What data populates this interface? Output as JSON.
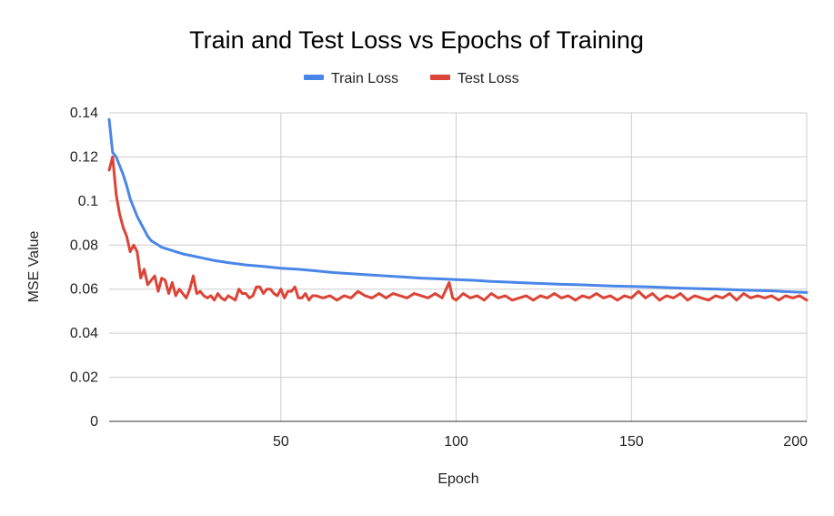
{
  "chart_data": {
    "type": "line",
    "title": "Train and Test Loss vs Epochs of Training",
    "xlabel": "Epoch",
    "ylabel": "MSE Value",
    "xlim": [
      1,
      200
    ],
    "ylim": [
      0,
      0.14
    ],
    "x_ticks": [
      50,
      100,
      150,
      200
    ],
    "x_tick_labels": [
      "50",
      "100",
      "150",
      "200"
    ],
    "y_ticks": [
      0,
      0.02,
      0.04,
      0.06,
      0.08,
      0.1,
      0.12,
      0.14
    ],
    "y_tick_labels": [
      "0",
      "0.02",
      "0.04",
      "0.06",
      "0.08",
      "0.1",
      "0.12",
      "0.14"
    ],
    "grid": true,
    "legend_position": "top",
    "series": [
      {
        "name": "Train Loss",
        "color": "#4a86e8",
        "points": [
          [
            1,
            0.137
          ],
          [
            2,
            0.122
          ],
          [
            3,
            0.12
          ],
          [
            4,
            0.116
          ],
          [
            5,
            0.112
          ],
          [
            6,
            0.107
          ],
          [
            7,
            0.101
          ],
          [
            8,
            0.097
          ],
          [
            9,
            0.093
          ],
          [
            10,
            0.09
          ],
          [
            11,
            0.087
          ],
          [
            12,
            0.084
          ],
          [
            13,
            0.082
          ],
          [
            14,
            0.081
          ],
          [
            15,
            0.08
          ],
          [
            16,
            0.079
          ],
          [
            17,
            0.0785
          ],
          [
            18,
            0.078
          ],
          [
            19,
            0.0775
          ],
          [
            20,
            0.077
          ],
          [
            22,
            0.076
          ],
          [
            25,
            0.075
          ],
          [
            28,
            0.074
          ],
          [
            31,
            0.073
          ],
          [
            35,
            0.072
          ],
          [
            40,
            0.071
          ],
          [
            45,
            0.0703
          ],
          [
            50,
            0.0695
          ],
          [
            55,
            0.069
          ],
          [
            60,
            0.0683
          ],
          [
            65,
            0.0675
          ],
          [
            70,
            0.067
          ],
          [
            75,
            0.0665
          ],
          [
            80,
            0.066
          ],
          [
            85,
            0.0655
          ],
          [
            90,
            0.065
          ],
          [
            95,
            0.0647
          ],
          [
            100,
            0.0643
          ],
          [
            105,
            0.064
          ],
          [
            110,
            0.0635
          ],
          [
            115,
            0.0632
          ],
          [
            120,
            0.0628
          ],
          [
            125,
            0.0625
          ],
          [
            130,
            0.0622
          ],
          [
            135,
            0.062
          ],
          [
            140,
            0.0617
          ],
          [
            145,
            0.0614
          ],
          [
            150,
            0.0612
          ],
          [
            155,
            0.061
          ],
          [
            160,
            0.0607
          ],
          [
            165,
            0.0604
          ],
          [
            170,
            0.0602
          ],
          [
            175,
            0.06
          ],
          [
            180,
            0.0597
          ],
          [
            185,
            0.0594
          ],
          [
            190,
            0.0592
          ],
          [
            195,
            0.0588
          ],
          [
            200,
            0.0585
          ]
        ]
      },
      {
        "name": "Test Loss",
        "color": "#db4437",
        "points": [
          [
            1,
            0.114
          ],
          [
            2,
            0.12
          ],
          [
            3,
            0.103
          ],
          [
            4,
            0.094
          ],
          [
            5,
            0.088
          ],
          [
            6,
            0.084
          ],
          [
            7,
            0.077
          ],
          [
            8,
            0.08
          ],
          [
            9,
            0.077
          ],
          [
            10,
            0.065
          ],
          [
            11,
            0.069
          ],
          [
            12,
            0.062
          ],
          [
            13,
            0.064
          ],
          [
            14,
            0.066
          ],
          [
            15,
            0.059
          ],
          [
            16,
            0.065
          ],
          [
            17,
            0.064
          ],
          [
            18,
            0.058
          ],
          [
            19,
            0.063
          ],
          [
            20,
            0.057
          ],
          [
            21,
            0.06
          ],
          [
            22,
            0.058
          ],
          [
            23,
            0.056
          ],
          [
            24,
            0.06
          ],
          [
            25,
            0.066
          ],
          [
            26,
            0.058
          ],
          [
            27,
            0.059
          ],
          [
            28,
            0.057
          ],
          [
            29,
            0.056
          ],
          [
            30,
            0.057
          ],
          [
            31,
            0.055
          ],
          [
            32,
            0.058
          ],
          [
            33,
            0.056
          ],
          [
            34,
            0.055
          ],
          [
            35,
            0.057
          ],
          [
            36,
            0.056
          ],
          [
            37,
            0.055
          ],
          [
            38,
            0.06
          ],
          [
            39,
            0.058
          ],
          [
            40,
            0.058
          ],
          [
            41,
            0.056
          ],
          [
            42,
            0.057
          ],
          [
            43,
            0.061
          ],
          [
            44,
            0.061
          ],
          [
            45,
            0.058
          ],
          [
            46,
            0.06
          ],
          [
            47,
            0.06
          ],
          [
            48,
            0.058
          ],
          [
            49,
            0.057
          ],
          [
            50,
            0.06
          ],
          [
            51,
            0.056
          ],
          [
            52,
            0.059
          ],
          [
            53,
            0.059
          ],
          [
            54,
            0.061
          ],
          [
            55,
            0.056
          ],
          [
            56,
            0.056
          ],
          [
            57,
            0.058
          ],
          [
            58,
            0.055
          ],
          [
            59,
            0.057
          ],
          [
            60,
            0.057
          ],
          [
            62,
            0.056
          ],
          [
            64,
            0.057
          ],
          [
            66,
            0.055
          ],
          [
            68,
            0.057
          ],
          [
            70,
            0.056
          ],
          [
            72,
            0.059
          ],
          [
            74,
            0.057
          ],
          [
            76,
            0.056
          ],
          [
            78,
            0.058
          ],
          [
            80,
            0.056
          ],
          [
            82,
            0.058
          ],
          [
            84,
            0.057
          ],
          [
            86,
            0.056
          ],
          [
            88,
            0.058
          ],
          [
            90,
            0.057
          ],
          [
            92,
            0.056
          ],
          [
            94,
            0.058
          ],
          [
            96,
            0.056
          ],
          [
            98,
            0.063
          ],
          [
            99,
            0.056
          ],
          [
            100,
            0.055
          ],
          [
            102,
            0.058
          ],
          [
            104,
            0.056
          ],
          [
            106,
            0.057
          ],
          [
            108,
            0.055
          ],
          [
            110,
            0.058
          ],
          [
            112,
            0.056
          ],
          [
            114,
            0.057
          ],
          [
            116,
            0.055
          ],
          [
            118,
            0.056
          ],
          [
            120,
            0.057
          ],
          [
            122,
            0.055
          ],
          [
            124,
            0.057
          ],
          [
            126,
            0.056
          ],
          [
            128,
            0.058
          ],
          [
            130,
            0.056
          ],
          [
            132,
            0.057
          ],
          [
            134,
            0.055
          ],
          [
            136,
            0.057
          ],
          [
            138,
            0.056
          ],
          [
            140,
            0.058
          ],
          [
            142,
            0.056
          ],
          [
            144,
            0.057
          ],
          [
            146,
            0.055
          ],
          [
            148,
            0.057
          ],
          [
            150,
            0.056
          ],
          [
            152,
            0.059
          ],
          [
            154,
            0.056
          ],
          [
            156,
            0.058
          ],
          [
            158,
            0.055
          ],
          [
            160,
            0.057
          ],
          [
            162,
            0.056
          ],
          [
            164,
            0.058
          ],
          [
            166,
            0.055
          ],
          [
            168,
            0.057
          ],
          [
            170,
            0.056
          ],
          [
            172,
            0.055
          ],
          [
            174,
            0.057
          ],
          [
            176,
            0.056
          ],
          [
            178,
            0.058
          ],
          [
            180,
            0.055
          ],
          [
            182,
            0.058
          ],
          [
            184,
            0.056
          ],
          [
            186,
            0.057
          ],
          [
            188,
            0.056
          ],
          [
            190,
            0.057
          ],
          [
            192,
            0.055
          ],
          [
            194,
            0.057
          ],
          [
            196,
            0.056
          ],
          [
            198,
            0.057
          ],
          [
            200,
            0.055
          ]
        ]
      }
    ]
  }
}
